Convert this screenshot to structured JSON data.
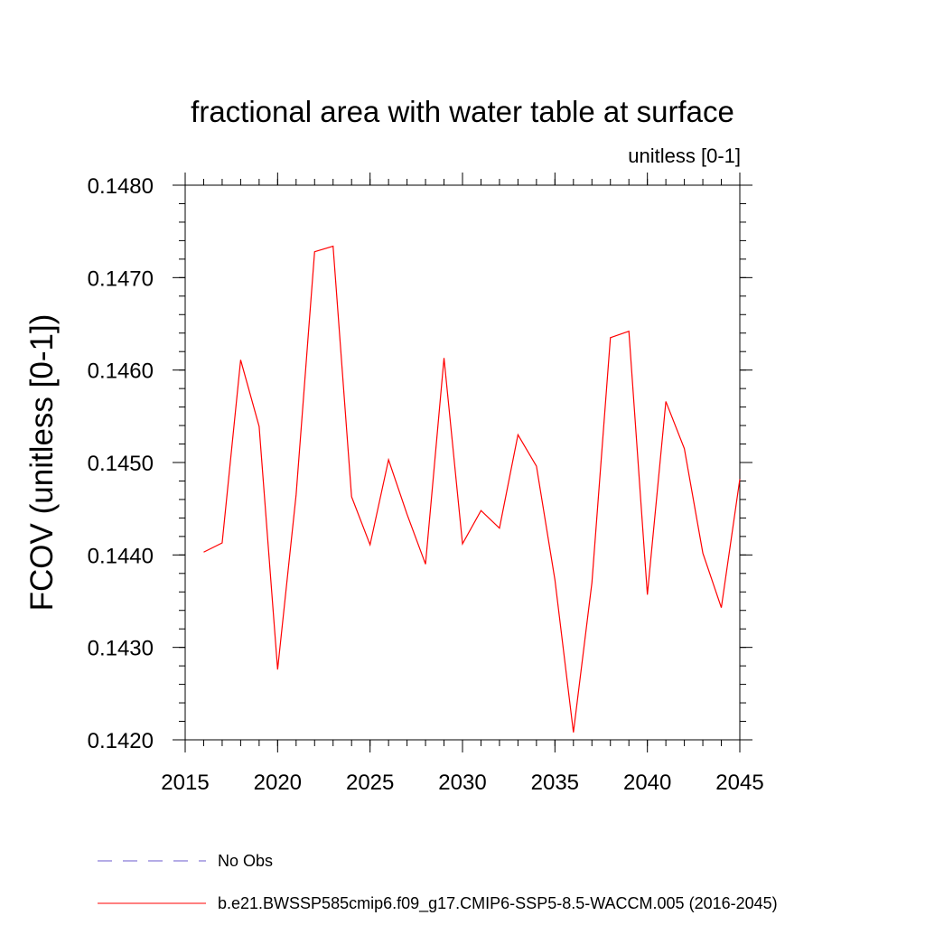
{
  "chart_data": {
    "type": "line",
    "title": "fractional area with water table at surface",
    "subtitle": "unitless [0-1]",
    "xlabel": "",
    "ylabel": "FCOV  (unitless [0-1])",
    "xlim": [
      2015,
      2045
    ],
    "ylim": [
      0.142,
      0.148
    ],
    "x_ticks": [
      2015,
      2020,
      2025,
      2030,
      2035,
      2040,
      2045
    ],
    "y_ticks": [
      0.142,
      0.143,
      0.144,
      0.145,
      0.146,
      0.147,
      0.148
    ],
    "y_tick_labels": [
      "0.1420",
      "0.1430",
      "0.1440",
      "0.1450",
      "0.1460",
      "0.1470",
      "0.1480"
    ],
    "grid": false,
    "legend_position": "bottom",
    "series": [
      {
        "name": "No Obs",
        "color": "#6a5acd",
        "dash": "dashed",
        "x": [],
        "y": []
      },
      {
        "name": "b.e21.BWSSP585cmip6.f09_g17.CMIP6-SSP5-8.5-WACCM.005 (2016-2045)",
        "color": "#ff0000",
        "dash": "solid",
        "x": [
          2016,
          2017,
          2018,
          2019,
          2020,
          2021,
          2022,
          2023,
          2024,
          2025,
          2026,
          2027,
          2028,
          2029,
          2030,
          2031,
          2032,
          2033,
          2034,
          2035,
          2036,
          2037,
          2038,
          2039,
          2040,
          2041,
          2042,
          2043,
          2044,
          2045
        ],
        "y": [
          0.14403,
          0.14413,
          0.14611,
          0.14539,
          0.14276,
          0.14465,
          0.14728,
          0.14734,
          0.14463,
          0.14411,
          0.14503,
          0.14444,
          0.1439,
          0.14613,
          0.14412,
          0.14448,
          0.14429,
          0.1453,
          0.14496,
          0.14373,
          0.14208,
          0.1437,
          0.14635,
          0.14642,
          0.14357,
          0.14566,
          0.14515,
          0.14402,
          0.14343,
          0.14482
        ]
      }
    ]
  }
}
